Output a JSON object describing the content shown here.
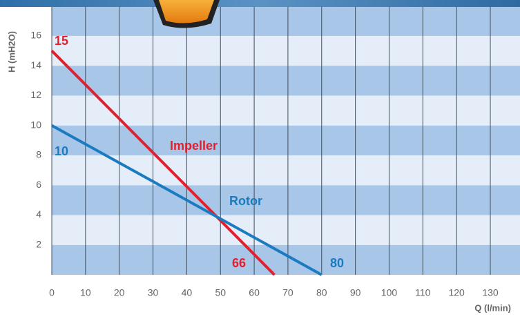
{
  "chart_data": {
    "type": "line",
    "x_label": "Q (l/min)",
    "y_label": "H (mH2O)",
    "xlim": [
      0,
      138.8
    ],
    "ylim": [
      0,
      18.4
    ],
    "xticks": [
      0,
      10,
      20,
      30,
      40,
      50,
      60,
      70,
      80,
      90,
      100,
      110,
      120,
      130
    ],
    "yticks": [
      2,
      4,
      6,
      8,
      10,
      12,
      14,
      16
    ],
    "grid": true,
    "series": [
      {
        "name": "Impeller",
        "color": "#e1202f",
        "x": [
          0,
          66
        ],
        "values": [
          15,
          0
        ]
      },
      {
        "name": "Rotor",
        "color": "#1b7bc0",
        "x": [
          0,
          80
        ],
        "values": [
          10,
          0
        ]
      }
    ]
  }
}
